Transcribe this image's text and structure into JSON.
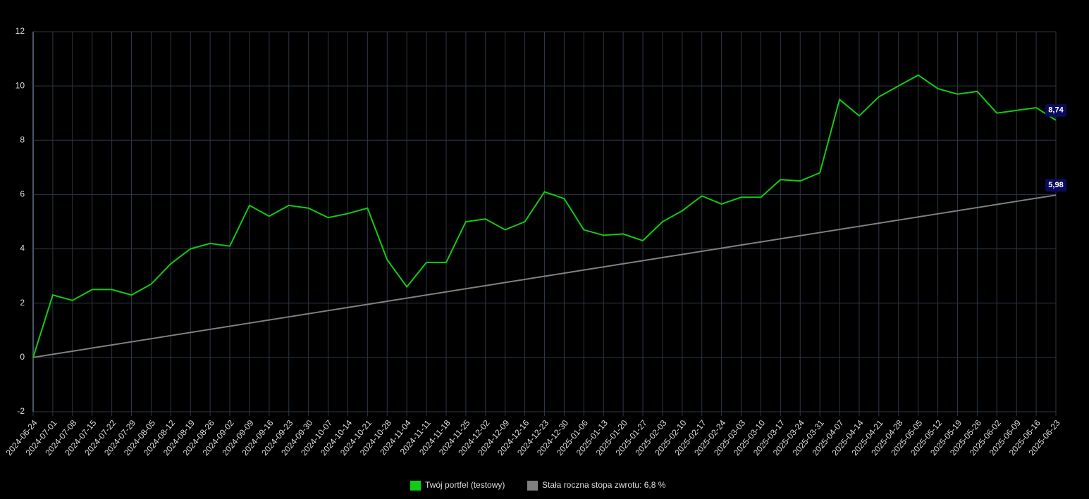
{
  "chart_data": {
    "type": "line",
    "x": [
      "2024-06-24",
      "2024-07-01",
      "2024-07-08",
      "2024-07-15",
      "2024-07-22",
      "2024-07-29",
      "2024-08-05",
      "2024-08-12",
      "2024-08-19",
      "2024-08-26",
      "2024-09-02",
      "2024-09-09",
      "2024-09-16",
      "2024-09-23",
      "2024-09-30",
      "2024-10-07",
      "2024-10-14",
      "2024-10-21",
      "2024-10-28",
      "2024-11-04",
      "2024-11-11",
      "2024-11-18",
      "2024-11-25",
      "2024-12-02",
      "2024-12-09",
      "2024-12-16",
      "2024-12-23",
      "2024-12-30",
      "2025-01-06",
      "2025-01-13",
      "2025-01-20",
      "2025-01-27",
      "2025-02-03",
      "2025-02-10",
      "2025-02-17",
      "2025-02-24",
      "2025-03-03",
      "2025-03-10",
      "2025-03-17",
      "2025-03-24",
      "2025-03-31",
      "2025-04-07",
      "2025-04-14",
      "2025-04-21",
      "2025-04-28",
      "2025-05-05",
      "2025-05-12",
      "2025-05-19",
      "2025-05-26",
      "2025-06-02",
      "2025-06-09",
      "2025-06-16",
      "2025-06-23"
    ],
    "series": [
      {
        "name": "Twój portfel (testowy)",
        "color": "#11cc11",
        "values": [
          0,
          2.3,
          2.1,
          2.5,
          2.5,
          2.3,
          2.7,
          3.45,
          4.0,
          4.2,
          4.1,
          5.6,
          5.2,
          5.6,
          5.5,
          5.15,
          5.3,
          5.5,
          3.6,
          2.6,
          3.5,
          3.5,
          5.0,
          5.1,
          4.7,
          5.0,
          6.1,
          5.85,
          4.7,
          4.5,
          4.55,
          4.3,
          5.0,
          5.4,
          5.95,
          5.65,
          5.9,
          5.9,
          6.55,
          6.5,
          6.8,
          9.5,
          8.9,
          9.6,
          10.0,
          10.4,
          9.9,
          9.7,
          9.8,
          9.0,
          9.1,
          9.2,
          8.74
        ],
        "value_labels": [
          null,
          null,
          null,
          null,
          null,
          null,
          null,
          null,
          null,
          null,
          null,
          null,
          null,
          null,
          null,
          null,
          null,
          null,
          null,
          null,
          null,
          null,
          null,
          null,
          null,
          null,
          null,
          null,
          null,
          null,
          null,
          null,
          null,
          null,
          null,
          null,
          null,
          null,
          null,
          null,
          null,
          null,
          null,
          null,
          null,
          null,
          null,
          null,
          null,
          null,
          null,
          null,
          "8,74"
        ]
      },
      {
        "name": "Stała roczna stopa zwrotu: 6,8 %",
        "color": "#808080",
        "values": [
          0,
          0.115,
          0.23,
          0.345,
          0.46,
          0.575,
          0.69,
          0.805,
          0.92,
          1.035,
          1.15,
          1.265,
          1.38,
          1.495,
          1.61,
          1.725,
          1.84,
          1.955,
          2.07,
          2.185,
          2.3,
          2.415,
          2.53,
          2.645,
          2.76,
          2.875,
          2.99,
          3.105,
          3.22,
          3.335,
          3.45,
          3.565,
          3.68,
          3.795,
          3.91,
          4.025,
          4.14,
          4.255,
          4.37,
          4.485,
          4.6,
          4.715,
          4.83,
          4.945,
          5.06,
          5.175,
          5.29,
          5.405,
          5.52,
          5.635,
          5.75,
          5.865,
          5.98
        ],
        "value_labels": [
          null,
          null,
          null,
          null,
          null,
          null,
          null,
          null,
          null,
          null,
          null,
          null,
          null,
          null,
          null,
          null,
          null,
          null,
          null,
          null,
          null,
          null,
          null,
          null,
          null,
          null,
          null,
          null,
          null,
          null,
          null,
          null,
          null,
          null,
          null,
          null,
          null,
          null,
          null,
          null,
          null,
          null,
          null,
          null,
          null,
          null,
          null,
          null,
          null,
          null,
          null,
          null,
          "5,98"
        ]
      }
    ],
    "ylim": [
      -2,
      12
    ],
    "yticks": [
      -2,
      0,
      2,
      4,
      6,
      8,
      10,
      12
    ],
    "grid": true
  }
}
